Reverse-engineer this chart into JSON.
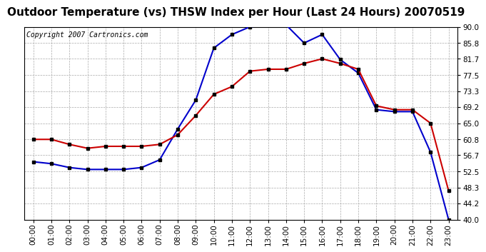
{
  "title": "Outdoor Temperature (vs) THSW Index per Hour (Last 24 Hours) 20070519",
  "copyright": "Copyright 2007 Cartronics.com",
  "hours": [
    "00:00",
    "01:00",
    "02:00",
    "03:00",
    "04:00",
    "05:00",
    "06:00",
    "07:00",
    "08:00",
    "09:00",
    "10:00",
    "11:00",
    "12:00",
    "13:00",
    "14:00",
    "15:00",
    "16:00",
    "17:00",
    "18:00",
    "19:00",
    "20:00",
    "21:00",
    "22:00",
    "23:00"
  ],
  "temp_red": [
    60.8,
    60.8,
    59.5,
    58.5,
    59.0,
    59.0,
    59.0,
    59.5,
    62.0,
    67.0,
    72.5,
    74.5,
    78.5,
    79.0,
    79.0,
    80.5,
    81.7,
    80.5,
    79.0,
    69.5,
    68.5,
    68.5,
    65.0,
    47.5
  ],
  "thsw_blue": [
    55.0,
    54.5,
    53.5,
    53.0,
    53.0,
    53.0,
    53.5,
    55.5,
    63.5,
    71.0,
    84.5,
    88.0,
    90.0,
    90.5,
    90.5,
    85.8,
    88.0,
    81.5,
    78.0,
    68.5,
    68.0,
    68.0,
    57.5,
    40.0
  ],
  "ylim_min": 40.0,
  "ylim_max": 90.0,
  "yticks": [
    40.0,
    44.2,
    48.3,
    52.5,
    56.7,
    60.8,
    65.0,
    69.2,
    73.3,
    77.5,
    81.7,
    85.8,
    90.0
  ],
  "bg_color": "#ffffff",
  "plot_bg_color": "#ffffff",
  "grid_color": "#aaaaaa",
  "red_color": "#cc0000",
  "blue_color": "#0000cc",
  "title_color": "#000000",
  "copyright_color": "#000000",
  "title_fontsize": 11,
  "copyright_fontsize": 7,
  "tick_fontsize": 7.5,
  "marker": "s",
  "marker_size": 3,
  "line_width": 1.5
}
